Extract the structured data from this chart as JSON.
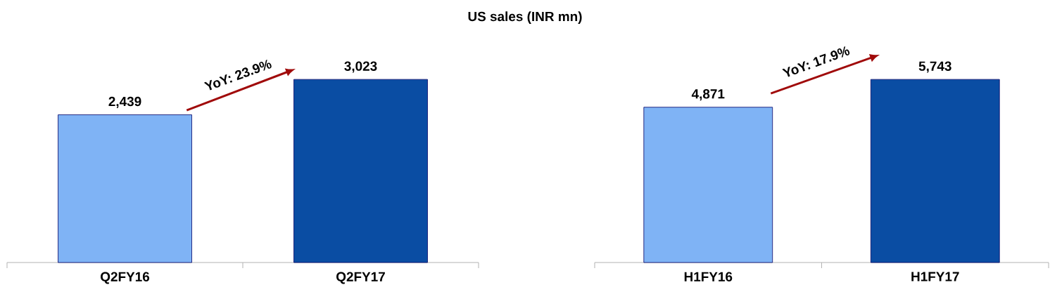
{
  "chart_data": [
    {
      "type": "bar",
      "title": "US sales (INR mn)",
      "categories": [
        "Q2FY16",
        "Q2FY17"
      ],
      "values": [
        2439,
        3023
      ],
      "value_labels": [
        "2,439",
        "3,023"
      ],
      "colors": [
        "#7fb3f5",
        "#0a4da3"
      ],
      "annotations": [
        "YoY: 23.9%"
      ]
    },
    {
      "type": "bar",
      "categories": [
        "H1FY16",
        "H1FY17"
      ],
      "values": [
        4871,
        5743
      ],
      "value_labels": [
        "4,871",
        "5,743"
      ],
      "colors": [
        "#7fb3f5",
        "#0a4da3"
      ],
      "annotations": [
        "YoY: 17.9%"
      ]
    }
  ]
}
